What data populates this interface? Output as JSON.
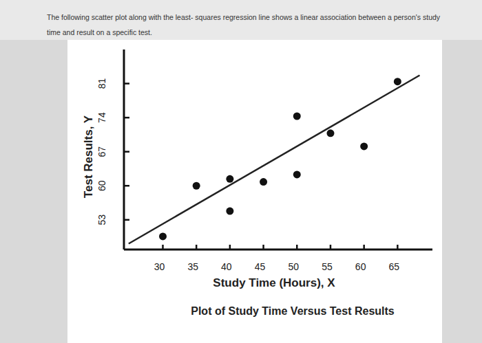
{
  "header": {
    "text": "The following scatter plot along with the least- squares regression line shows a linear association between a person's study time and result on a specific test."
  },
  "chart_data": {
    "type": "scatter",
    "title": "Plot of Study Time Versus Test Results",
    "x_label": "Study Time (Hours), X",
    "y_label": "Test Results, Y",
    "xlim": [
      24.2,
      70.2
    ],
    "xticks": [
      30,
      35,
      40,
      45,
      50,
      55,
      60,
      65
    ],
    "ylim": [
      46.9,
      88
    ],
    "yticks": [
      53,
      60,
      67,
      74,
      81
    ],
    "grid": false,
    "series": [
      {
        "type": "scatter",
        "color": "#111111",
        "marker": "circle",
        "x": [
          30,
          35,
          40,
          40,
          45,
          50,
          50,
          55,
          60,
          65
        ],
        "values": [
          49.6,
          60,
          61.4,
          54.8,
          60.8,
          74.3,
          62.3,
          70.8,
          68.1,
          81.4
        ]
      },
      {
        "type": "line",
        "color": "#222222",
        "line_style": "solid",
        "x": [
          24.9,
          68.3
        ],
        "values": [
          48.1,
          82.7
        ]
      }
    ]
  }
}
